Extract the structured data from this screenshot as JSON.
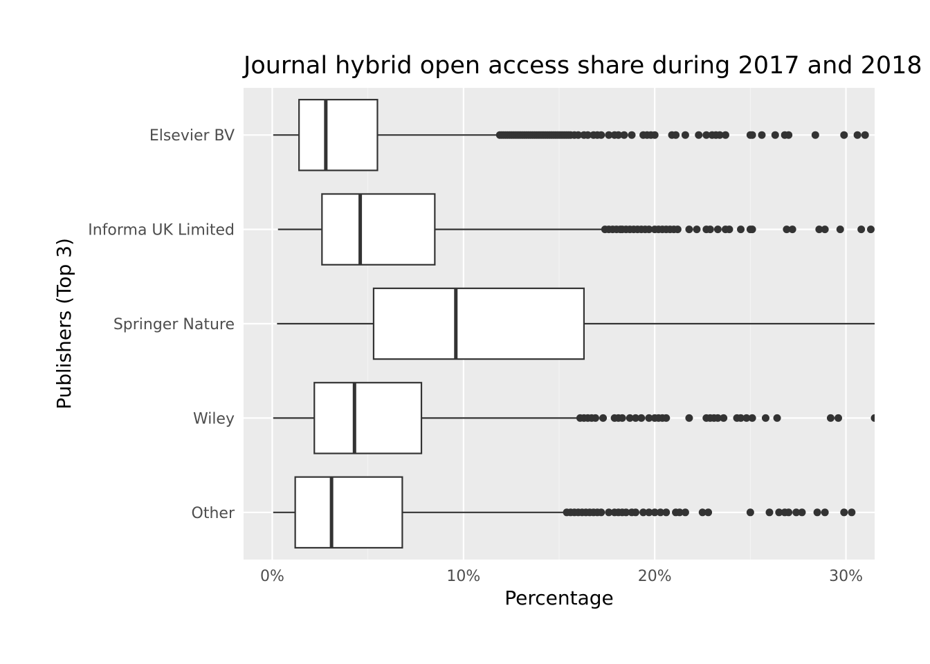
{
  "chart_data": {
    "type": "boxplot",
    "orientation": "horizontal",
    "title": "Journal hybrid open access share during 2017 and 2018",
    "xlabel": "Percentage",
    "ylabel": "Publishers (Top 3)",
    "xlim": [
      -1.5,
      31.5
    ],
    "xticks": [
      0,
      10,
      20,
      30
    ],
    "xtick_labels": [
      "0%",
      "10%",
      "20%",
      "30%"
    ],
    "grid": true,
    "panel_background": "#ebebeb",
    "box_fill": "#ffffff",
    "line_color": "#333333",
    "categories": [
      "Elsevier BV",
      "Informa UK Limited",
      "Springer Nature",
      "Wiley",
      "Other"
    ],
    "boxes": [
      {
        "category": "Elsevier BV",
        "whisker_low": 0.05,
        "q1": 1.4,
        "median": 2.8,
        "q3": 5.5,
        "whisker_high": 11.8,
        "outliers": [
          11.9,
          12.0,
          12.1,
          12.2,
          12.3,
          12.4,
          12.5,
          12.6,
          12.7,
          12.8,
          12.9,
          13.0,
          13.1,
          13.2,
          13.3,
          13.4,
          13.5,
          13.6,
          13.7,
          13.8,
          13.9,
          14.0,
          14.1,
          14.2,
          14.3,
          14.4,
          14.5,
          14.6,
          14.7,
          14.8,
          14.9,
          15.0,
          15.1,
          15.2,
          15.3,
          15.4,
          15.5,
          15.6,
          15.8,
          16.0,
          16.3,
          16.5,
          16.8,
          17.0,
          17.2,
          17.6,
          17.9,
          18.1,
          18.4,
          18.8,
          19.4,
          19.6,
          19.8,
          20.0,
          20.9,
          21.1,
          21.6,
          22.3,
          22.7,
          23.0,
          23.2,
          23.4,
          23.7,
          25.0,
          25.1,
          25.6,
          26.3,
          26.8,
          27.0,
          28.4,
          29.9,
          30.6,
          31.0
        ]
      },
      {
        "category": "Informa UK Limited",
        "whisker_low": 0.3,
        "q1": 2.6,
        "median": 4.6,
        "q3": 8.5,
        "whisker_high": 17.3,
        "outliers": [
          17.4,
          17.6,
          17.8,
          18.0,
          18.2,
          18.3,
          18.5,
          18.7,
          18.9,
          19.1,
          19.3,
          19.5,
          19.7,
          20.0,
          20.2,
          20.4,
          20.6,
          20.8,
          21.0,
          21.2,
          21.8,
          22.2,
          22.7,
          22.9,
          23.3,
          23.7,
          23.9,
          24.5,
          25.0,
          25.1,
          26.9,
          27.2,
          28.6,
          28.9,
          29.7,
          30.8,
          31.3
        ]
      },
      {
        "category": "Springer Nature",
        "whisker_low": 0.25,
        "q1": 5.3,
        "median": 9.6,
        "q3": 16.3,
        "whisker_high": 31.5,
        "outliers": []
      },
      {
        "category": "Wiley",
        "whisker_low": 0.05,
        "q1": 2.2,
        "median": 4.3,
        "q3": 7.8,
        "whisker_high": 16.0,
        "outliers": [
          16.1,
          16.3,
          16.5,
          16.7,
          16.9,
          17.3,
          17.9,
          18.1,
          18.3,
          18.7,
          19.0,
          19.3,
          19.7,
          20.0,
          20.2,
          20.4,
          20.6,
          21.8,
          22.7,
          22.9,
          23.1,
          23.3,
          23.6,
          24.3,
          24.5,
          24.8,
          25.1,
          25.8,
          26.4,
          29.2,
          29.6,
          31.5
        ]
      },
      {
        "category": "Other",
        "whisker_low": 0.05,
        "q1": 1.2,
        "median": 3.1,
        "q3": 6.8,
        "whisker_high": 15.3,
        "outliers": [
          15.4,
          15.6,
          15.8,
          16.0,
          16.2,
          16.4,
          16.6,
          16.8,
          17.0,
          17.2,
          17.6,
          17.9,
          18.1,
          18.3,
          18.5,
          18.8,
          19.0,
          19.4,
          19.7,
          20.0,
          20.3,
          20.6,
          21.1,
          21.3,
          21.6,
          22.5,
          22.8,
          25.0,
          26.0,
          26.5,
          26.8,
          27.0,
          27.4,
          27.7,
          28.5,
          28.9,
          29.9,
          30.3
        ]
      }
    ]
  }
}
